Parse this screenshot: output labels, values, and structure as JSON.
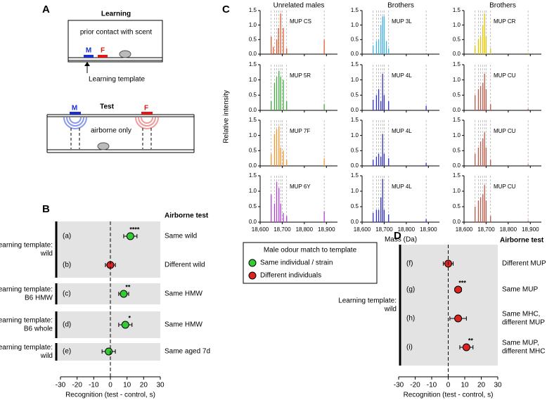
{
  "diagram": {
    "panel": "A",
    "learning_title": "Learning",
    "prior": "prior contact with scent",
    "m1": "M",
    "f1": "F",
    "template_label": "Learning template",
    "test_title": "Test",
    "m2": "M",
    "f2": "F",
    "airborne": "airborne only"
  },
  "legend": {
    "title": "Male odour match to template",
    "items": [
      {
        "name": "Same individual / strain",
        "color": "#33cc33"
      },
      {
        "name": "Different individuals",
        "color": "#dd2222"
      }
    ]
  },
  "chart_data": [
    {
      "type": "forest",
      "panel": "B",
      "header": "Airborne test",
      "xlabel": "Recognition (test - control, s)",
      "xlim": [
        -30,
        30
      ],
      "xticks": [
        -30,
        -20,
        -10,
        0,
        10,
        20,
        30
      ],
      "groups": [
        {
          "template": [
            "Learning template:",
            "wild"
          ],
          "rows": [
            {
              "id": "(a)",
              "value": 12,
              "error": 4,
              "color": "#33cc33",
              "sig": "****",
              "test": [
                "Same wild"
              ]
            },
            {
              "id": "(b)",
              "value": 0,
              "error": 3,
              "color": "#dd2222",
              "test": [
                "Different wild"
              ]
            }
          ]
        },
        {
          "template": [
            "Learning template:",
            "B6 HMW"
          ],
          "rows": [
            {
              "id": "(c)",
              "value": 8,
              "error": 3,
              "color": "#33cc33",
              "sig": "**",
              "test": [
                "Same HMW"
              ]
            }
          ]
        },
        {
          "template": [
            "Learning template:",
            "B6 whole"
          ],
          "rows": [
            {
              "id": "(d)",
              "value": 9,
              "error": 4,
              "color": "#33cc33",
              "sig": "*",
              "test": [
                "Same HMW"
              ]
            }
          ]
        },
        {
          "template": [
            "Learning template:",
            "wild"
          ],
          "rows": [
            {
              "id": "(e)",
              "value": -1,
              "error": 4,
              "color": "#33cc33",
              "test": [
                "Same aged 7d"
              ]
            }
          ]
        }
      ]
    },
    {
      "type": "stem",
      "panel": "C",
      "ylabel": "Relative intensity",
      "xlabel": "Mass (Da)",
      "column_titles": [
        "Unrelated males",
        "Brothers",
        "Brothers"
      ],
      "xlim": [
        18600,
        18950
      ],
      "xticks": [
        {
          "value": 18600,
          "label": "18,600"
        },
        {
          "value": 18700,
          "label": "18,700"
        },
        {
          "value": 18800,
          "label": "18,800"
        },
        {
          "value": 18900,
          "label": "18,900"
        }
      ],
      "ylim": [
        0,
        1.5
      ],
      "yticks": [
        {
          "value": 0,
          "label": "0.0"
        },
        0.5,
        {
          "value": 1,
          "label": "1.0"
        },
        1.5
      ],
      "ref_lines": [
        18650,
        18665,
        18675,
        18685,
        18693,
        18700,
        18720,
        18890
      ],
      "panels": [
        {
          "label": "MUP CS",
          "color": "#e4572e",
          "x": [
            18650,
            18660,
            18675,
            18683,
            18693,
            18705,
            18720,
            18890
          ],
          "values": [
            0.6,
            0.25,
            0.5,
            0.9,
            1.4,
            0.9,
            0.2,
            0.5
          ]
        },
        {
          "label": "MUP 3L",
          "color": "#3fb1e0",
          "x": [
            18650,
            18665,
            18675,
            18685,
            18693,
            18700,
            18710,
            18720
          ],
          "values": [
            0.3,
            0.45,
            0.5,
            1.0,
            1.3,
            1.3,
            0.45,
            0.2
          ]
        },
        {
          "label": "MUP CR",
          "color": "#e3c400",
          "x": [
            18650,
            18665,
            18675,
            18685,
            18693,
            18700,
            18720,
            18890
          ],
          "values": [
            0.3,
            0.5,
            0.6,
            1.0,
            1.4,
            0.6,
            0.2,
            0.05
          ]
        },
        {
          "label": "MUP 5R",
          "color": "#3caa3c",
          "x": [
            18650,
            18665,
            18675,
            18685,
            18693,
            18705,
            18720,
            18890
          ],
          "values": [
            0.3,
            0.9,
            1.1,
            1.3,
            1.1,
            1.0,
            0.3,
            0.2
          ]
        },
        {
          "label": "MUP 4L",
          "color": "#3030c0",
          "x": [
            18650,
            18665,
            18675,
            18685,
            18693,
            18700,
            18720,
            18890
          ],
          "values": [
            0.35,
            0.5,
            0.7,
            0.3,
            1.2,
            0.5,
            0.3,
            0.15
          ]
        },
        {
          "label": "MUP CU",
          "color": "#b85a4a",
          "x": [
            18650,
            18665,
            18675,
            18685,
            18693,
            18700,
            18720,
            18890
          ],
          "values": [
            0.5,
            0.7,
            0.8,
            0.9,
            1.2,
            0.7,
            0.2,
            0.05
          ]
        },
        {
          "label": "MUP 7F",
          "color": "#f0952a",
          "x": [
            18650,
            18665,
            18675,
            18685,
            18693,
            18705,
            18720,
            18890
          ],
          "values": [
            0.4,
            1.05,
            1.2,
            1.3,
            0.6,
            0.5,
            0.2,
            0.25
          ]
        },
        {
          "label": "MUP 4L",
          "color": "#3030c0",
          "x": [
            18650,
            18665,
            18675,
            18685,
            18693,
            18700,
            18720,
            18890
          ],
          "values": [
            0.2,
            0.3,
            0.4,
            0.3,
            1.05,
            0.4,
            0.25,
            0.1
          ]
        },
        {
          "label": "MUP CU",
          "color": "#b85a4a",
          "x": [
            18650,
            18665,
            18675,
            18685,
            18693,
            18700,
            18720,
            18890
          ],
          "values": [
            0.4,
            0.6,
            0.8,
            0.9,
            1.1,
            0.6,
            0.2,
            0.05
          ]
        },
        {
          "label": "MUP 6Y",
          "color": "#b040d0",
          "x": [
            18650,
            18665,
            18675,
            18685,
            18693,
            18705,
            18720,
            18890
          ],
          "values": [
            0.9,
            0.6,
            1.3,
            1.1,
            0.6,
            0.3,
            0.2,
            0.35
          ]
        },
        {
          "label": "MUP 4L",
          "color": "#3030c0",
          "x": [
            18650,
            18665,
            18675,
            18685,
            18693,
            18700,
            18720,
            18890
          ],
          "values": [
            0.3,
            0.4,
            0.4,
            0.8,
            1.4,
            0.4,
            0.25,
            0.1
          ]
        },
        {
          "label": "MUP CU",
          "color": "#b85a4a",
          "x": [
            18650,
            18665,
            18675,
            18685,
            18693,
            18700,
            18720,
            18890
          ],
          "values": [
            0.5,
            0.7,
            0.8,
            0.9,
            1.2,
            0.7,
            0.2,
            0.05
          ]
        }
      ]
    },
    {
      "type": "forest",
      "panel": "D",
      "header": "Airborne test",
      "xlabel": "Recognition (test - control, s)",
      "xlim": [
        -30,
        30
      ],
      "xticks": [
        -30,
        -20,
        -10,
        0,
        10,
        20,
        30
      ],
      "groups": [
        {
          "template": [
            "Learning template:",
            "wild"
          ],
          "rows": [
            {
              "id": "(f)",
              "value": 0,
              "error": 3,
              "color": "#dd2222",
              "test": [
                "Different MUP"
              ]
            },
            {
              "id": "(g)",
              "value": 6,
              "error": 2,
              "color": "#dd2222",
              "sig": "***",
              "test": [
                "Same MUP"
              ]
            },
            {
              "id": "(h)",
              "value": 6,
              "error": 5,
              "color": "#dd2222",
              "test": [
                "Same MHC,",
                "different MUP"
              ]
            },
            {
              "id": "(i)",
              "value": 11,
              "error": 4,
              "color": "#dd2222",
              "sig": "**",
              "test": [
                "Same MUP,",
                "different MHC"
              ]
            }
          ]
        }
      ]
    }
  ]
}
